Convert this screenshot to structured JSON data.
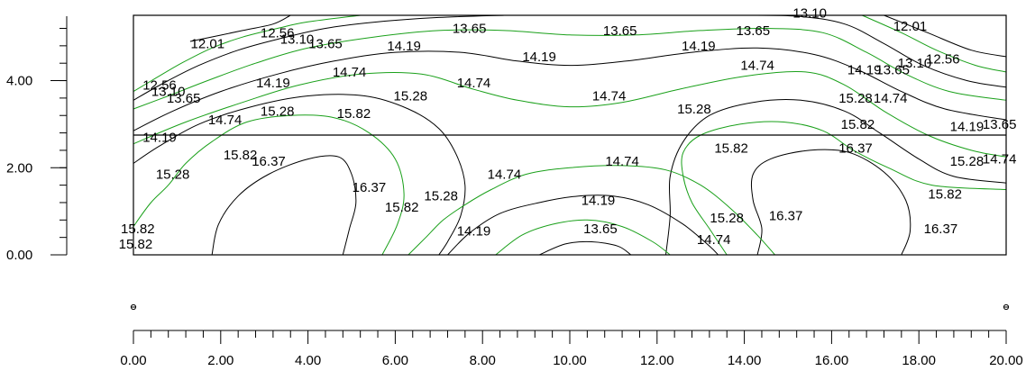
{
  "chart_data": {
    "type": "contour",
    "x_axis": {
      "range": [
        0,
        20
      ],
      "ticks": [
        0,
        2,
        4,
        6,
        8,
        10,
        12,
        14,
        16,
        18,
        20
      ],
      "tick_labels": [
        "0.00",
        "2.00",
        "4.00",
        "6.00",
        "8.00",
        "10.00",
        "12.00",
        "14.00",
        "16.00",
        "18.00",
        "20.00"
      ],
      "minor_per_major": 5
    },
    "y_axis": {
      "range": [
        0,
        5.5
      ],
      "ticks": [
        0,
        2,
        4
      ],
      "tick_labels": [
        "0.00",
        "2.00",
        "4.00"
      ],
      "minor_step": 0.4
    },
    "domain": {
      "x": [
        0,
        20
      ],
      "y": [
        0,
        5.5
      ]
    },
    "divider_y": 2.75,
    "contour_levels": [
      12.01,
      12.56,
      13.1,
      13.65,
      14.19,
      14.74,
      15.28,
      15.82,
      16.37
    ],
    "line_colors": {
      "odd": "#000000",
      "even": "#1aa01a"
    },
    "contour_labels": [
      {
        "text": "13.10",
        "x": 15.5,
        "y": 5.55
      },
      {
        "text": "12.01",
        "x": 17.8,
        "y": 5.25
      },
      {
        "text": "13.65",
        "x": 7.7,
        "y": 5.2
      },
      {
        "text": "13.65",
        "x": 11.15,
        "y": 5.15
      },
      {
        "text": "13.65",
        "x": 14.2,
        "y": 5.15
      },
      {
        "text": "12.56",
        "x": 3.3,
        "y": 5.1
      },
      {
        "text": "13.10",
        "x": 3.75,
        "y": 4.95
      },
      {
        "text": "12.01",
        "x": 1.7,
        "y": 4.85
      },
      {
        "text": "13.65",
        "x": 4.4,
        "y": 4.85
      },
      {
        "text": "14.19",
        "x": 6.2,
        "y": 4.8
      },
      {
        "text": "14.19",
        "x": 12.95,
        "y": 4.8
      },
      {
        "text": "14.19",
        "x": 9.3,
        "y": 4.55
      },
      {
        "text": "12.56",
        "x": 18.55,
        "y": 4.5
      },
      {
        "text": "13.10",
        "x": 17.9,
        "y": 4.4
      },
      {
        "text": "14.74",
        "x": 14.3,
        "y": 4.35
      },
      {
        "text": "13.65",
        "x": 17.4,
        "y": 4.25
      },
      {
        "text": "14.19",
        "x": 16.75,
        "y": 4.25
      },
      {
        "text": "14.74",
        "x": 4.95,
        "y": 4.2
      },
      {
        "text": "14.19",
        "x": 3.2,
        "y": 3.95
      },
      {
        "text": "14.74",
        "x": 7.8,
        "y": 3.95
      },
      {
        "text": "12.56",
        "x": 0.6,
        "y": 3.9
      },
      {
        "text": "13.10",
        "x": 0.8,
        "y": 3.75
      },
      {
        "text": "13.65",
        "x": 1.15,
        "y": 3.6
      },
      {
        "text": "14.74",
        "x": 10.9,
        "y": 3.65
      },
      {
        "text": "15.28",
        "x": 6.35,
        "y": 3.65
      },
      {
        "text": "15.28",
        "x": 16.55,
        "y": 3.6
      },
      {
        "text": "14.74",
        "x": 17.35,
        "y": 3.6
      },
      {
        "text": "15.28",
        "x": 12.85,
        "y": 3.35
      },
      {
        "text": "15.28",
        "x": 3.3,
        "y": 3.3
      },
      {
        "text": "15.82",
        "x": 5.05,
        "y": 3.25
      },
      {
        "text": "14.74",
        "x": 2.1,
        "y": 3.1
      },
      {
        "text": "15.82",
        "x": 16.6,
        "y": 3.0
      },
      {
        "text": "14.19",
        "x": 19.1,
        "y": 2.95
      },
      {
        "text": "13.65",
        "x": 19.85,
        "y": 3.0
      },
      {
        "text": "14.19",
        "x": 0.6,
        "y": 2.7
      },
      {
        "text": "15.82",
        "x": 13.7,
        "y": 2.45
      },
      {
        "text": "16.37",
        "x": 16.55,
        "y": 2.45
      },
      {
        "text": "15.82",
        "x": 2.45,
        "y": 2.3
      },
      {
        "text": "16.37",
        "x": 3.1,
        "y": 2.15
      },
      {
        "text": "14.74",
        "x": 11.2,
        "y": 2.15
      },
      {
        "text": "15.28",
        "x": 19.1,
        "y": 2.15
      },
      {
        "text": "14.74",
        "x": 19.85,
        "y": 2.2
      },
      {
        "text": "14.74",
        "x": 8.5,
        "y": 1.85
      },
      {
        "text": "15.28",
        "x": 0.9,
        "y": 1.85
      },
      {
        "text": "16.37",
        "x": 5.4,
        "y": 1.55
      },
      {
        "text": "15.28",
        "x": 7.05,
        "y": 1.35
      },
      {
        "text": "15.82",
        "x": 18.6,
        "y": 1.4
      },
      {
        "text": "14.19",
        "x": 10.65,
        "y": 1.25
      },
      {
        "text": "15.82",
        "x": 6.15,
        "y": 1.1
      },
      {
        "text": "15.28",
        "x": 13.6,
        "y": 0.85
      },
      {
        "text": "16.37",
        "x": 14.95,
        "y": 0.9
      },
      {
        "text": "14.19",
        "x": 7.8,
        "y": 0.55
      },
      {
        "text": "13.65",
        "x": 10.7,
        "y": 0.6
      },
      {
        "text": "16.37",
        "x": 18.5,
        "y": 0.6
      },
      {
        "text": "15.82",
        "x": 0.1,
        "y": 0.6
      },
      {
        "text": "14.74",
        "x": 13.3,
        "y": 0.35
      },
      {
        "text": "15.82",
        "x": 0.05,
        "y": 0.25
      }
    ],
    "contour_lines": [
      {
        "level": "12.01",
        "points": [
          [
            1.3,
            4.9
          ],
          [
            2.5,
            5.15
          ],
          [
            3.2,
            5.3
          ],
          [
            3.6,
            5.5
          ]
        ]
      },
      {
        "level": "12.01",
        "points": [
          [
            17.2,
            5.5
          ],
          [
            18.2,
            5.1
          ],
          [
            19.2,
            4.7
          ],
          [
            20,
            4.55
          ]
        ]
      },
      {
        "level": "12.56",
        "points": [
          [
            0,
            3.75
          ],
          [
            0.5,
            4.05
          ],
          [
            1.1,
            4.4
          ],
          [
            1.8,
            4.75
          ],
          [
            2.5,
            5.0
          ],
          [
            3.3,
            5.2
          ],
          [
            4.0,
            5.35
          ],
          [
            5.2,
            5.5
          ]
        ]
      },
      {
        "level": "12.56",
        "points": [
          [
            16.7,
            5.5
          ],
          [
            17.6,
            5.1
          ],
          [
            18.4,
            4.7
          ],
          [
            19.3,
            4.35
          ],
          [
            20,
            4.2
          ]
        ]
      },
      {
        "level": "13.10",
        "points": [
          [
            0,
            3.55
          ],
          [
            0.7,
            3.95
          ],
          [
            1.5,
            4.35
          ],
          [
            2.4,
            4.7
          ],
          [
            3.3,
            4.95
          ],
          [
            4.4,
            5.2
          ],
          [
            5.6,
            5.35
          ],
          [
            7.0,
            5.45
          ],
          [
            8.5,
            5.5
          ]
        ]
      },
      {
        "level": "13.10",
        "points": [
          [
            13.8,
            5.5
          ],
          [
            15.2,
            5.48
          ],
          [
            16.3,
            5.3
          ],
          [
            17.2,
            4.85
          ],
          [
            18.1,
            4.35
          ],
          [
            19.1,
            4.0
          ],
          [
            20,
            3.85
          ]
        ]
      },
      {
        "level": "13.65",
        "points": [
          [
            0,
            3.35
          ],
          [
            0.8,
            3.65
          ],
          [
            1.7,
            4.0
          ],
          [
            2.8,
            4.4
          ],
          [
            4.0,
            4.75
          ],
          [
            5.5,
            5.0
          ],
          [
            7.0,
            5.15
          ],
          [
            8.5,
            5.15
          ],
          [
            10.0,
            5.05
          ],
          [
            11.5,
            5.05
          ],
          [
            13.0,
            5.15
          ],
          [
            14.5,
            5.2
          ],
          [
            15.8,
            5.1
          ],
          [
            16.8,
            4.65
          ],
          [
            17.7,
            4.15
          ],
          [
            18.7,
            3.75
          ],
          [
            20,
            3.55
          ]
        ]
      },
      {
        "level": "14.19",
        "points": [
          [
            0,
            2.85
          ],
          [
            0.9,
            3.3
          ],
          [
            2.0,
            3.75
          ],
          [
            3.3,
            4.15
          ],
          [
            4.6,
            4.45
          ],
          [
            6.0,
            4.65
          ],
          [
            7.5,
            4.65
          ],
          [
            8.8,
            4.45
          ],
          [
            10.0,
            4.35
          ],
          [
            11.3,
            4.45
          ],
          [
            12.8,
            4.65
          ],
          [
            14.3,
            4.75
          ],
          [
            15.6,
            4.6
          ],
          [
            16.6,
            4.25
          ],
          [
            17.6,
            3.75
          ],
          [
            18.6,
            3.35
          ],
          [
            20,
            3.1
          ]
        ]
      },
      {
        "level": "14.74",
        "points": [
          [
            0,
            2.55
          ],
          [
            1.2,
            3.05
          ],
          [
            2.5,
            3.5
          ],
          [
            3.8,
            3.9
          ],
          [
            5.2,
            4.15
          ],
          [
            6.6,
            4.15
          ],
          [
            7.8,
            3.8
          ],
          [
            8.8,
            3.55
          ],
          [
            10.0,
            3.4
          ],
          [
            11.2,
            3.5
          ],
          [
            12.5,
            3.8
          ],
          [
            14.0,
            4.1
          ],
          [
            15.4,
            4.2
          ],
          [
            16.3,
            3.9
          ],
          [
            17.2,
            3.3
          ],
          [
            18.2,
            2.75
          ],
          [
            19.2,
            2.4
          ],
          [
            20,
            2.25
          ]
        ]
      },
      {
        "level": "15.28",
        "points": [
          [
            0,
            2.1
          ],
          [
            0.6,
            2.5
          ],
          [
            1.5,
            3.0
          ],
          [
            2.7,
            3.4
          ],
          [
            4.0,
            3.65
          ],
          [
            5.3,
            3.65
          ],
          [
            6.3,
            3.35
          ],
          [
            7.0,
            2.9
          ],
          [
            7.4,
            2.3
          ],
          [
            7.6,
            1.6
          ],
          [
            7.5,
            0.9
          ],
          [
            7.2,
            0.3
          ],
          [
            7.0,
            0
          ]
        ]
      },
      {
        "level": "15.28",
        "points": [
          [
            12.2,
            0
          ],
          [
            12.3,
            0.9
          ],
          [
            12.3,
            1.8
          ],
          [
            12.6,
            2.6
          ],
          [
            13.2,
            3.2
          ],
          [
            14.2,
            3.5
          ],
          [
            15.3,
            3.55
          ],
          [
            16.3,
            3.3
          ],
          [
            17.1,
            2.8
          ],
          [
            18.0,
            2.2
          ],
          [
            18.8,
            1.8
          ],
          [
            20,
            1.65
          ]
        ]
      },
      {
        "level": "15.82",
        "points": [
          [
            0,
            0.65
          ],
          [
            0.4,
            1.2
          ],
          [
            0.8,
            1.6
          ],
          [
            1.2,
            2.1
          ],
          [
            1.8,
            2.6
          ],
          [
            2.6,
            3.05
          ],
          [
            3.6,
            3.2
          ],
          [
            4.6,
            3.15
          ],
          [
            5.4,
            2.8
          ],
          [
            6.0,
            2.2
          ],
          [
            6.2,
            1.4
          ],
          [
            6.05,
            0.7
          ],
          [
            5.7,
            0
          ]
        ]
      },
      {
        "level": "15.82",
        "points": [
          [
            13.6,
            0
          ],
          [
            13.2,
            0.6
          ],
          [
            12.8,
            1.2
          ],
          [
            12.6,
            1.8
          ],
          [
            12.6,
            2.35
          ],
          [
            13.0,
            2.75
          ],
          [
            13.9,
            3.0
          ],
          [
            14.9,
            3.05
          ],
          [
            15.8,
            2.85
          ],
          [
            16.5,
            2.4
          ],
          [
            17.3,
            2.0
          ],
          [
            18.3,
            1.6
          ],
          [
            20,
            1.5
          ]
        ]
      },
      {
        "level": "16.37",
        "points": [
          [
            1.8,
            0
          ],
          [
            1.95,
            0.7
          ],
          [
            2.4,
            1.35
          ],
          [
            3.1,
            1.85
          ],
          [
            4.0,
            2.2
          ],
          [
            4.7,
            2.25
          ],
          [
            5.0,
            1.85
          ],
          [
            5.1,
            1.2
          ],
          [
            4.95,
            0.6
          ],
          [
            4.8,
            0
          ]
        ]
      },
      {
        "level": "16.37",
        "points": [
          [
            14.3,
            0
          ],
          [
            14.4,
            0.6
          ],
          [
            14.2,
            1.25
          ],
          [
            14.2,
            1.85
          ],
          [
            14.6,
            2.2
          ],
          [
            15.5,
            2.4
          ],
          [
            16.4,
            2.35
          ],
          [
            17.2,
            1.9
          ],
          [
            17.7,
            1.25
          ],
          [
            17.8,
            0.55
          ],
          [
            17.6,
            0
          ]
        ]
      },
      {
        "level": "14.74",
        "points": [
          [
            6.3,
            0
          ],
          [
            6.7,
            0.4
          ],
          [
            7.1,
            0.8
          ],
          [
            7.6,
            1.15
          ],
          [
            8.2,
            1.5
          ],
          [
            9.0,
            1.85
          ],
          [
            10.0,
            2.0
          ],
          [
            11.2,
            2.05
          ],
          [
            12.2,
            1.95
          ],
          [
            13.0,
            1.6
          ],
          [
            13.7,
            1.05
          ],
          [
            14.3,
            0.45
          ],
          [
            14.7,
            0
          ]
        ]
      },
      {
        "level": "14.19",
        "points": [
          [
            7.2,
            0
          ],
          [
            7.7,
            0.5
          ],
          [
            8.4,
            0.95
          ],
          [
            9.3,
            1.2
          ],
          [
            10.2,
            1.35
          ],
          [
            11.0,
            1.35
          ],
          [
            11.8,
            1.15
          ],
          [
            12.6,
            0.7
          ],
          [
            13.2,
            0.2
          ],
          [
            13.4,
            0
          ]
        ]
      },
      {
        "level": "13.65",
        "points": [
          [
            8.3,
            0
          ],
          [
            8.9,
            0.45
          ],
          [
            9.6,
            0.7
          ],
          [
            10.4,
            0.8
          ],
          [
            11.2,
            0.65
          ],
          [
            11.9,
            0.3
          ],
          [
            12.3,
            0
          ]
        ]
      },
      {
        "level": "13.10",
        "points": [
          [
            9.3,
            0
          ],
          [
            9.9,
            0.25
          ],
          [
            10.5,
            0.3
          ],
          [
            11.1,
            0.2
          ],
          [
            11.4,
            0
          ]
        ]
      }
    ]
  },
  "x_markers": [
    {
      "x": 0,
      "symbol": "e"
    },
    {
      "x": 20,
      "symbol": "e"
    }
  ]
}
